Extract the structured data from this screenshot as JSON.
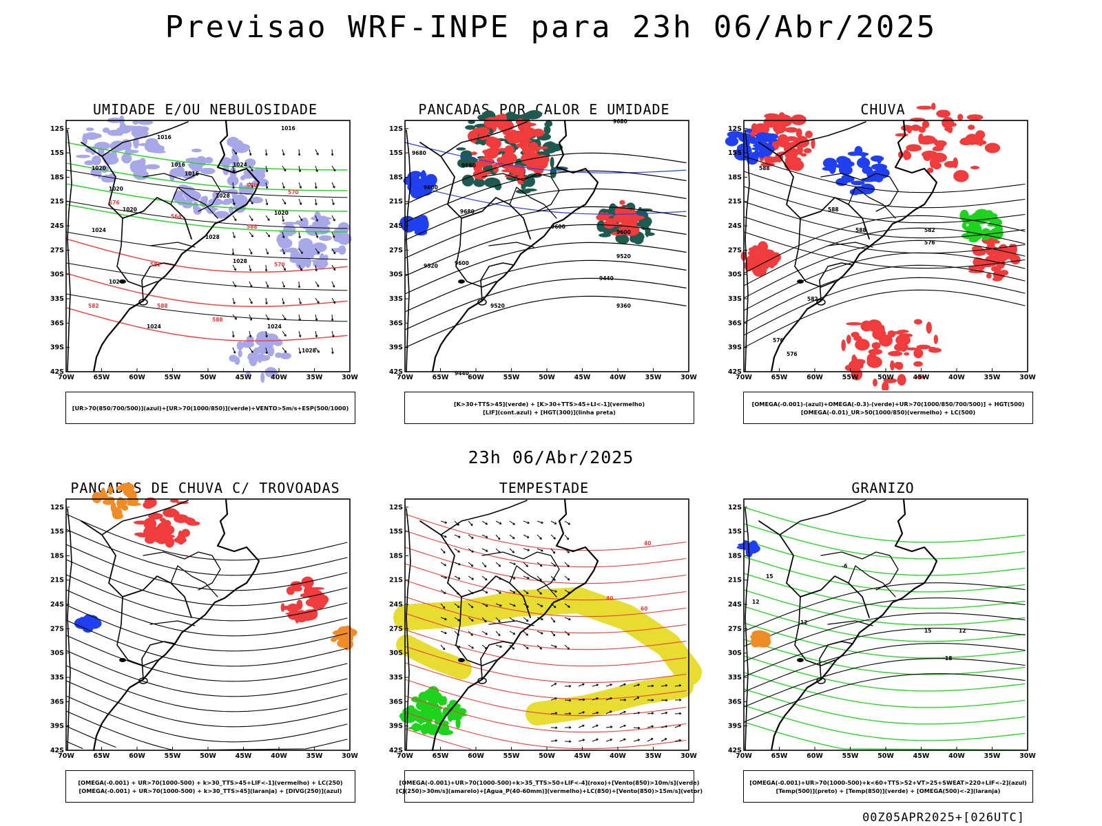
{
  "header": {
    "title": "Previsao WRF-INPE  para 23h 06/Abr/2025",
    "mid_date": "23h 06/Abr/2025",
    "run": "00Z05APR2025+[026UTC]"
  },
  "axes": {
    "latitudes": [
      "12S",
      "15S",
      "18S",
      "21S",
      "24S",
      "27S",
      "30S",
      "33S",
      "36S",
      "39S",
      "42S"
    ],
    "longitudes": [
      "70W",
      "65W",
      "60W",
      "55W",
      "50W",
      "45W",
      "40W",
      "35W",
      "30W"
    ]
  },
  "colors": {
    "red": "#f03c3c",
    "green": "#1ed21e",
    "dark_green": "#1f5a50",
    "blue": "#2040f0",
    "lavender": "#a8a8e8",
    "orange": "#f08c28",
    "yellow": "#e6dc32",
    "black": "#000000"
  },
  "panels": [
    {
      "id": "umidade",
      "title": "UMIDADE E/OU NEBULOSIDADE",
      "legend": [
        "[UR>70(850/700/500)](azul)+[UR>70(1000/850)](verde)+VENTO>5m/s+ESP(500/1000)"
      ],
      "contour_labels": [
        "1016",
        "1016",
        "1016",
        "1020",
        "1016",
        "1024",
        "1020",
        "1020",
        "1024",
        "1028",
        "1028",
        "1028",
        "1024",
        "1024",
        "1028",
        "1024",
        "1020"
      ],
      "red_labels": [
        "570",
        "570",
        "576",
        "564",
        "582",
        "588",
        "570",
        "582",
        "588",
        "588"
      ]
    },
    {
      "id": "pancadas",
      "title": "PANCADAS POR CALOR E UMIDADE",
      "legend": [
        "[K>30+TTS>45](verde) + [K>30+TTS>45+LI<-1](vermelho)",
        "[LIF](cont.azul) + [HGT(300)](linha preta)"
      ],
      "contour_labels": [
        "9680",
        "9680",
        "9600",
        "9680",
        "9600",
        "9600",
        "9520",
        "9520",
        "9440",
        "9360",
        "9600",
        "9520",
        "9440",
        "9680"
      ]
    },
    {
      "id": "chuva",
      "title": "CHUVA",
      "legend": [
        "[OMEGA(-0.001)-(azul)+OMEGA(-0.3)-(verde)+UR>70(1000/850/700/500)] + HGT(500)",
        "[OMEGA(-0.01)_UR>50(1000/850)(vermelho) + LC(500)"
      ],
      "contour_labels": [
        "588",
        "588",
        "588",
        "582",
        "576",
        "582",
        "576",
        "576"
      ]
    },
    {
      "id": "trovoadas",
      "title": "PANCADAS DE CHUVA C/ TROVOADAS",
      "legend": [
        "[OMEGA(-0.001) + UR>70(1000-500) + k>30_TTS>45+LIF<-1](vermelho) + LC(250)",
        "[OMEGA(-0.001) + UR>70(1000-500) + k>30_TTS>45](laranja) + [DIVG(250)](azul)"
      ]
    },
    {
      "id": "tempestade",
      "title": "TEMPESTADE",
      "legend": [
        "[OMEGA(-0.001)+UR>70(1000-500)+k>35_TTS>50+LIF<-4](roxo)+[Vento(850)>10m/s](verde)",
        "[CJ(250)>30m/s](amarelo)+[Agua_P(40-60mm)](vermelho)+LC(850)+[Vento(850)>15m/s](vetor)"
      ],
      "contour_labels": [
        "40",
        "40",
        "60"
      ]
    },
    {
      "id": "granizo",
      "title": "GRANIZO",
      "legend": [
        "[OMEGA(-0.001)+UR>70(1000-500)+k<60+TTS>52+VT>25+SWEAT>220+LIF<-2](azul)",
        "[Temp(500)](preto) + [Temp(850)](verde) + [OMEGA(500)<-2](laranja)"
      ],
      "contour_labels": [
        "-6",
        "15",
        "12",
        "15",
        "12",
        "18",
        "12"
      ]
    }
  ]
}
